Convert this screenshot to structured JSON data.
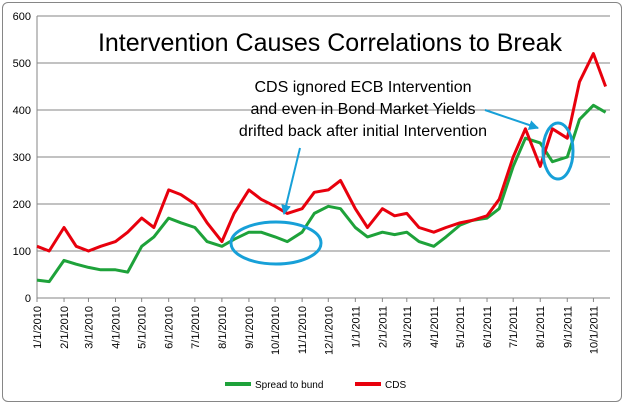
{
  "chart_data": {
    "type": "line",
    "title": "Intervention Causes Correlations to Break",
    "xlabel": "",
    "ylabel": "",
    "ylim": [
      0,
      600
    ],
    "yticks": [
      0,
      100,
      200,
      300,
      400,
      500,
      600
    ],
    "grid": "horizontal",
    "legend_position": "bottom",
    "x_tick_labels": [
      "1/1/2010",
      "2/1/2010",
      "3/1/2010",
      "4/1/2010",
      "5/1/2010",
      "6/1/2010",
      "7/1/2010",
      "8/1/2010",
      "9/1/2010",
      "10/1/2010",
      "11/1/2010",
      "12/1/2010",
      "1/1/2011",
      "2/1/2011",
      "3/1/2011",
      "4/1/2011",
      "5/1/2011",
      "6/1/2011",
      "7/1/2011",
      "8/1/2011",
      "9/1/2011",
      "10/1/2011"
    ],
    "x": [
      "1/1/2010",
      "1/15/2010",
      "2/1/2010",
      "2/15/2010",
      "3/1/2010",
      "3/15/2010",
      "4/1/2010",
      "4/15/2010",
      "5/1/2010",
      "5/15/2010",
      "6/1/2010",
      "6/15/2010",
      "7/1/2010",
      "7/15/2010",
      "8/1/2010",
      "8/15/2010",
      "9/1/2010",
      "9/15/2010",
      "10/1/2010",
      "10/15/2010",
      "11/1/2010",
      "11/15/2010",
      "12/1/2010",
      "12/15/2010",
      "1/1/2011",
      "1/15/2011",
      "2/1/2011",
      "2/15/2011",
      "3/1/2011",
      "3/15/2011",
      "4/1/2011",
      "4/15/2011",
      "5/1/2011",
      "5/15/2011",
      "6/1/2011",
      "6/15/2011",
      "7/1/2011",
      "7/15/2011",
      "8/1/2011",
      "8/15/2011",
      "9/1/2011",
      "9/15/2011",
      "10/1/2011",
      "10/15/2011"
    ],
    "series": [
      {
        "name": "Spread to bund",
        "color": "#1ea23a",
        "values": [
          38,
          35,
          80,
          72,
          65,
          60,
          60,
          55,
          110,
          130,
          170,
          160,
          150,
          120,
          110,
          125,
          140,
          140,
          130,
          120,
          140,
          180,
          195,
          190,
          150,
          130,
          140,
          135,
          140,
          120,
          110,
          130,
          155,
          165,
          170,
          190,
          280,
          340,
          330,
          290,
          300,
          380,
          410,
          395
        ]
      },
      {
        "name": "CDS",
        "color": "#e8000d",
        "values": [
          110,
          100,
          150,
          110,
          100,
          110,
          120,
          140,
          170,
          150,
          230,
          220,
          200,
          160,
          120,
          180,
          230,
          210,
          195,
          180,
          190,
          225,
          230,
          250,
          190,
          150,
          190,
          175,
          180,
          150,
          140,
          150,
          160,
          165,
          175,
          210,
          300,
          360,
          280,
          360,
          340,
          460,
          520,
          450
        ]
      }
    ],
    "annotations": [
      {
        "lines": [
          "CDS ignored ECB Intervention",
          "and even in Bond Market Yields",
          "drifted back after initial Intervention"
        ]
      }
    ]
  }
}
